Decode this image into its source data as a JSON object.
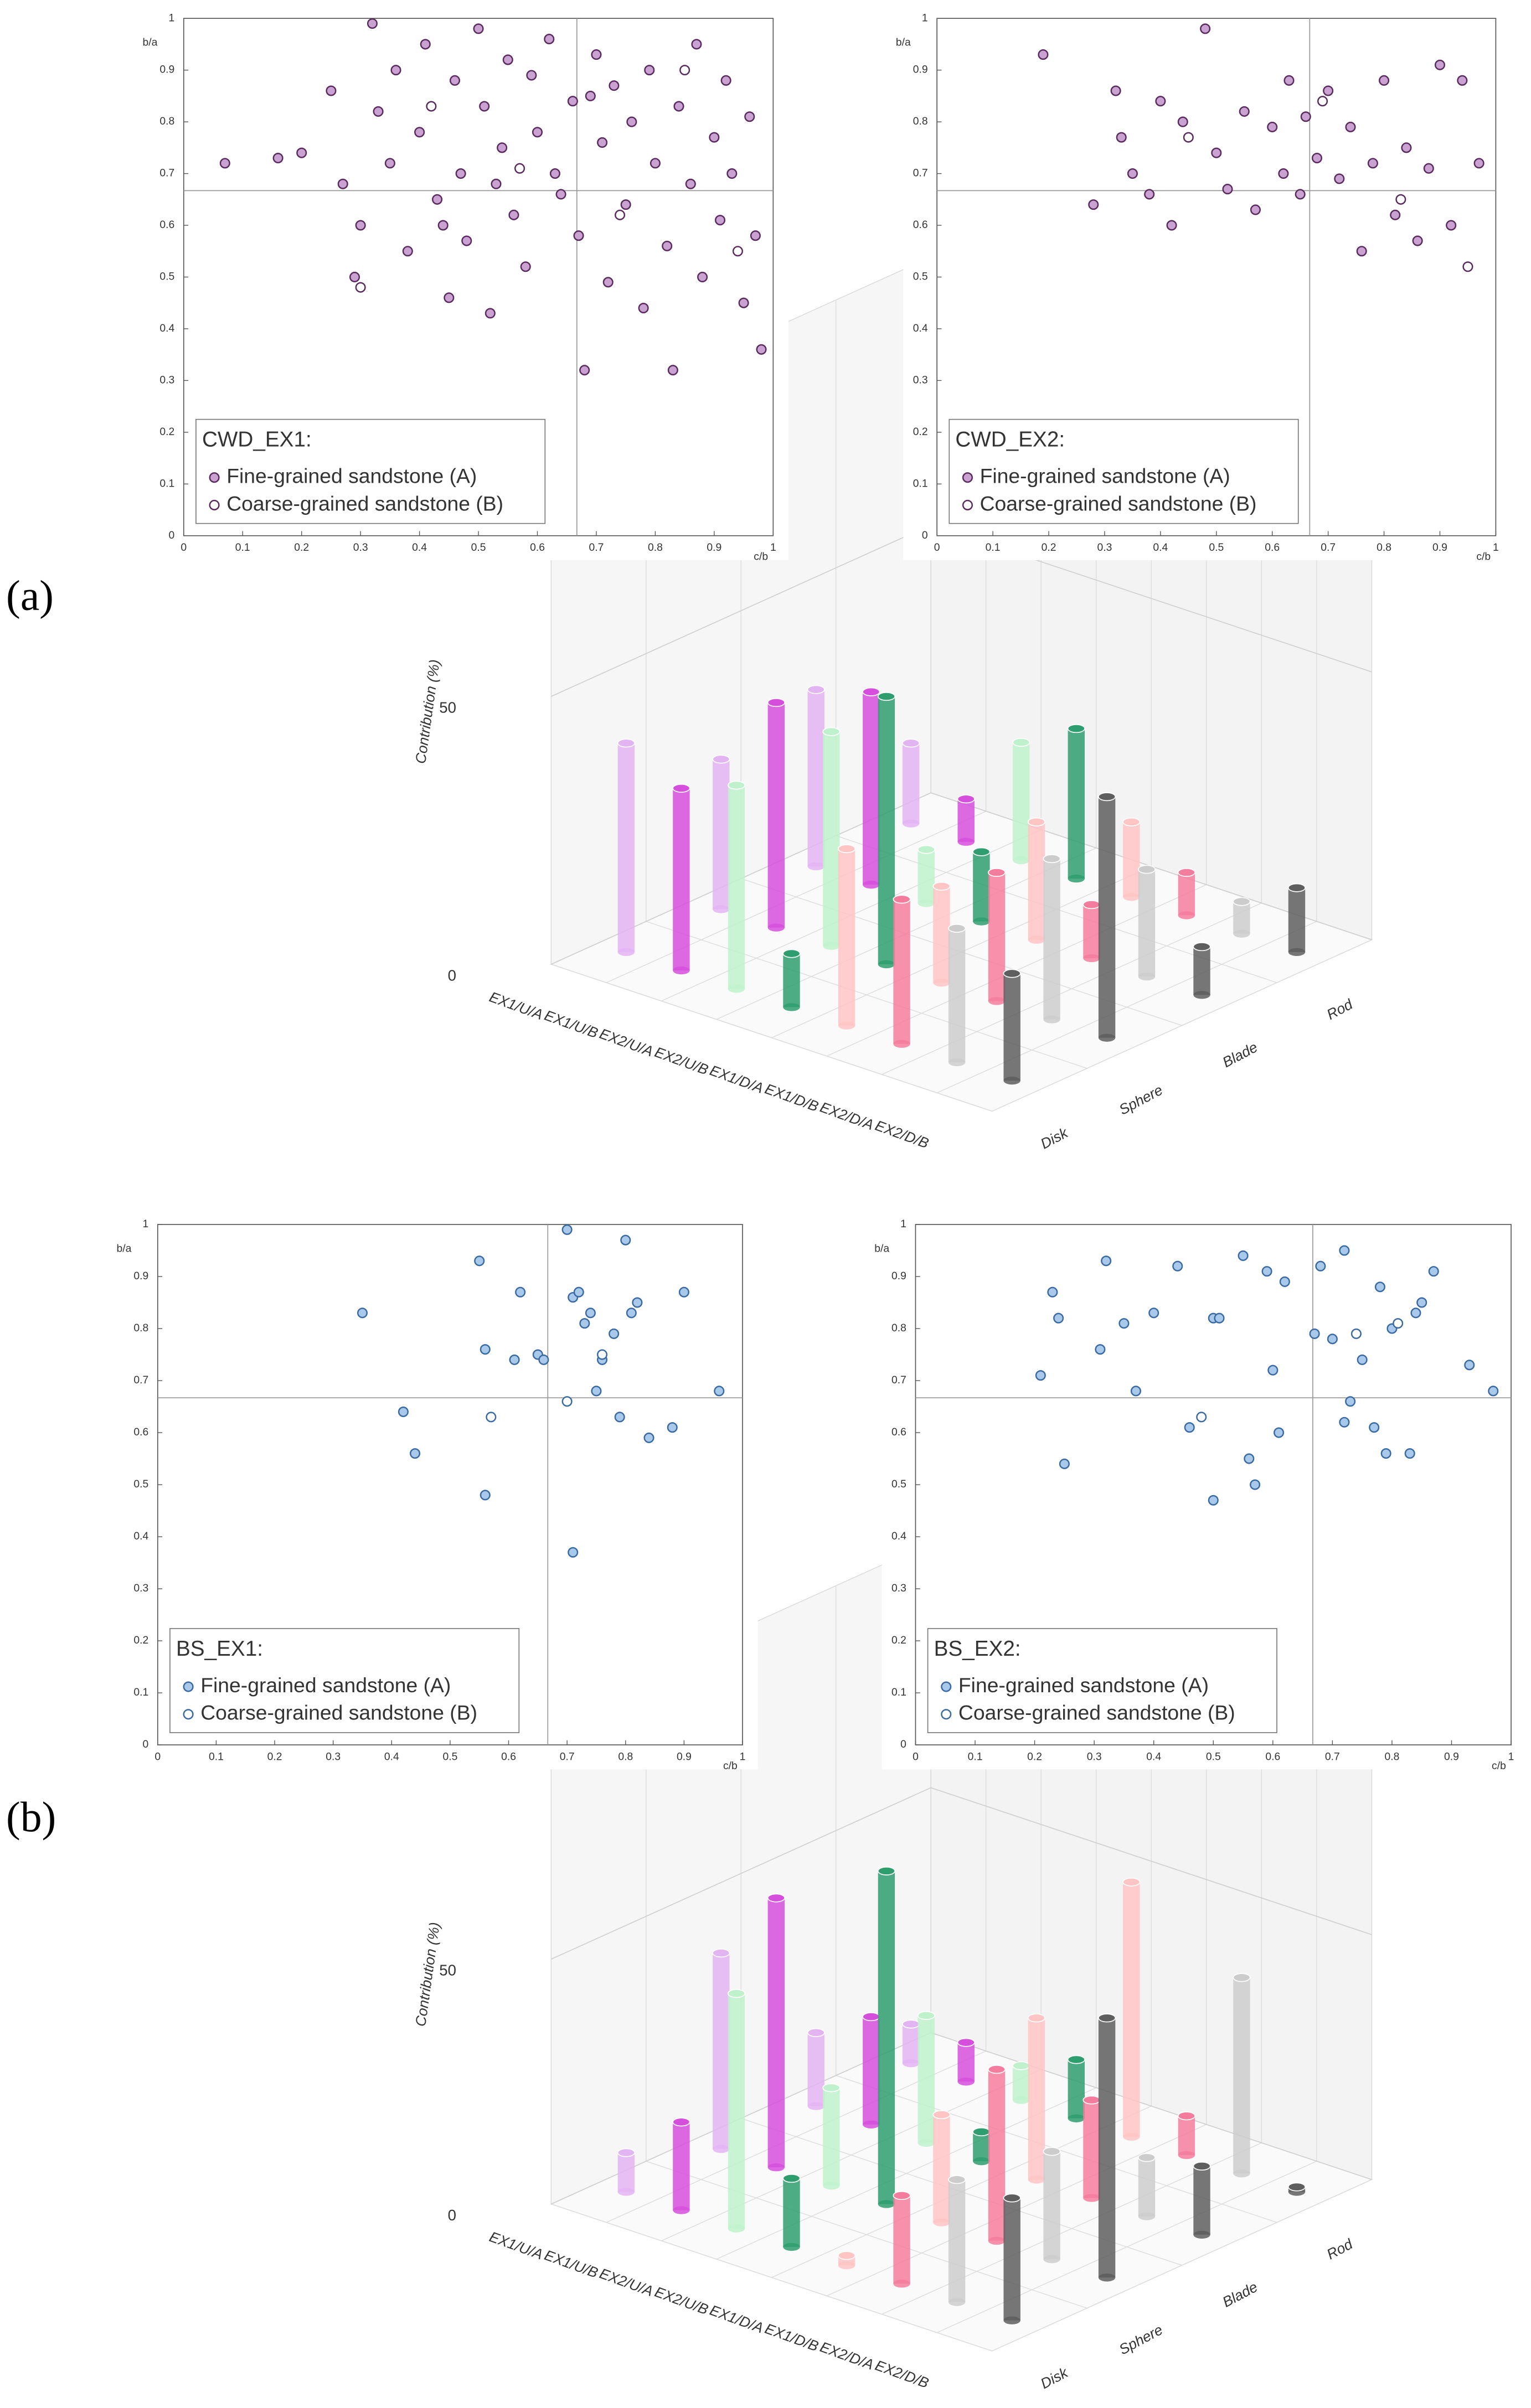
{
  "panel_labels": [
    "(a)",
    "(b)"
  ],
  "chart_data": [
    {
      "type": "scatter",
      "xlabel": "c/b",
      "ylabel": "b/a",
      "legend_title": "CWD_EX1:",
      "legend": "lower left",
      "xlim": [
        0,
        1
      ],
      "ylim": [
        0,
        1
      ],
      "xticks": [
        0,
        0.1,
        0.2,
        0.3,
        0.4,
        0.5,
        0.6,
        0.7,
        0.8,
        0.9,
        1
      ],
      "yticks": [
        0,
        0.1,
        0.2,
        0.3,
        0.4,
        0.5,
        0.6,
        0.7,
        0.8,
        0.9,
        1
      ],
      "hline": 0.667,
      "vline": 0.667,
      "series": [
        {
          "name": "Fine-grained sandstone (A)",
          "color": "#c9a2d2",
          "edge": "#5a2a5e",
          "filled": true,
          "x": [
            0.07,
            0.16,
            0.2,
            0.25,
            0.27,
            0.29,
            0.3,
            0.32,
            0.33,
            0.35,
            0.36,
            0.38,
            0.4,
            0.41,
            0.43,
            0.45,
            0.46,
            0.47,
            0.48,
            0.5,
            0.51,
            0.52,
            0.54,
            0.55,
            0.56,
            0.58,
            0.59,
            0.6,
            0.62,
            0.63,
            0.64,
            0.66,
            0.67,
            0.68,
            0.7,
            0.71,
            0.72,
            0.73,
            0.75,
            0.76,
            0.78,
            0.79,
            0.8,
            0.82,
            0.83,
            0.84,
            0.86,
            0.87,
            0.88,
            0.9,
            0.91,
            0.92,
            0.93,
            0.95,
            0.96,
            0.97,
            0.98,
            0.44,
            0.53,
            0.69
          ],
          "values": [
            0.72,
            0.73,
            0.74,
            0.86,
            0.68,
            0.5,
            0.6,
            0.99,
            0.82,
            0.72,
            0.9,
            0.55,
            0.78,
            0.95,
            0.65,
            0.46,
            0.88,
            0.7,
            0.57,
            0.98,
            0.83,
            0.43,
            0.75,
            0.92,
            0.62,
            0.52,
            0.89,
            0.78,
            0.96,
            0.7,
            0.66,
            0.84,
            0.58,
            0.32,
            0.93,
            0.76,
            0.49,
            0.87,
            0.64,
            0.8,
            0.44,
            0.9,
            0.72,
            0.56,
            0.32,
            0.83,
            0.68,
            0.95,
            0.5,
            0.77,
            0.61,
            0.88,
            0.7,
            0.45,
            0.81,
            0.58,
            0.36,
            0.6,
            0.68,
            0.85
          ]
        },
        {
          "name": "Coarse-grained sandstone (B)",
          "color": "#ffffff",
          "edge": "#5a2a5e",
          "filled": false,
          "x": [
            0.3,
            0.42,
            0.57,
            0.74,
            0.85,
            0.94
          ],
          "values": [
            0.48,
            0.83,
            0.71,
            0.62,
            0.9,
            0.55
          ]
        }
      ]
    },
    {
      "type": "scatter",
      "xlabel": "c/b",
      "ylabel": "b/a",
      "legend_title": "CWD_EX2:",
      "legend": "lower left",
      "xlim": [
        0,
        1
      ],
      "ylim": [
        0,
        1
      ],
      "xticks": [
        0,
        0.1,
        0.2,
        0.3,
        0.4,
        0.5,
        0.6,
        0.7,
        0.8,
        0.9,
        1
      ],
      "yticks": [
        0,
        0.1,
        0.2,
        0.3,
        0.4,
        0.5,
        0.6,
        0.7,
        0.8,
        0.9,
        1
      ],
      "hline": 0.667,
      "vline": 0.667,
      "series": [
        {
          "name": "Fine-grained sandstone (A)",
          "color": "#c9a2d2",
          "edge": "#5a2a5e",
          "filled": true,
          "x": [
            0.19,
            0.28,
            0.32,
            0.33,
            0.35,
            0.38,
            0.4,
            0.42,
            0.44,
            0.48,
            0.5,
            0.52,
            0.55,
            0.57,
            0.6,
            0.62,
            0.63,
            0.65,
            0.66,
            0.68,
            0.7,
            0.72,
            0.74,
            0.76,
            0.78,
            0.8,
            0.82,
            0.84,
            0.86,
            0.88,
            0.9,
            0.92,
            0.94,
            0.97
          ],
          "values": [
            0.93,
            0.64,
            0.86,
            0.77,
            0.7,
            0.66,
            0.84,
            0.6,
            0.8,
            0.98,
            0.74,
            0.67,
            0.82,
            0.63,
            0.79,
            0.7,
            0.88,
            0.66,
            0.81,
            0.73,
            0.86,
            0.69,
            0.79,
            0.55,
            0.72,
            0.88,
            0.62,
            0.75,
            0.57,
            0.71,
            0.91,
            0.6,
            0.88,
            0.72
          ]
        },
        {
          "name": "Coarse-grained sandstone (B)",
          "color": "#ffffff",
          "edge": "#5a2a5e",
          "filled": false,
          "x": [
            0.45,
            0.69,
            0.83,
            0.95
          ],
          "values": [
            0.77,
            0.84,
            0.65,
            0.52
          ]
        }
      ]
    },
    {
      "type": "bar3d",
      "ylabel": "Contribution (%)",
      "ylim": [
        0,
        100
      ],
      "yticks": [
        0,
        50
      ],
      "categories": [
        "Disk",
        "Sphere",
        "Blade",
        "Rod"
      ],
      "series": [
        {
          "name": "EX1/U/A",
          "color": "#e3b4f2",
          "values": [
            39,
            28,
            33,
            15
          ]
        },
        {
          "name": "EX1/U/B",
          "color": "#d64fdc",
          "values": [
            34,
            42,
            36,
            8
          ]
        },
        {
          "name": "EX2/U/A",
          "color": "#bff2cc",
          "values": [
            38,
            40,
            10,
            22
          ]
        },
        {
          "name": "EX2/U/B",
          "color": "#2f9e6e",
          "values": [
            10,
            50,
            13,
            28
          ]
        },
        {
          "name": "EX1/D/A",
          "color": "#ffc4c4",
          "values": [
            33,
            18,
            22,
            14
          ]
        },
        {
          "name": "EX1/D/B",
          "color": "#f47c9c",
          "values": [
            27,
            24,
            10,
            8
          ]
        },
        {
          "name": "EX2/D/A",
          "color": "#cccccc",
          "values": [
            25,
            30,
            20,
            6
          ]
        },
        {
          "name": "EX2/D/B",
          "color": "#5e5e5e",
          "values": [
            20,
            45,
            9,
            12
          ]
        }
      ]
    },
    {
      "type": "scatter",
      "xlabel": "c/b",
      "ylabel": "b/a",
      "legend_title": "BS_EX1:",
      "legend": "lower left",
      "xlim": [
        0,
        1
      ],
      "ylim": [
        0,
        1
      ],
      "xticks": [
        0,
        0.1,
        0.2,
        0.3,
        0.4,
        0.5,
        0.6,
        0.7,
        0.8,
        0.9,
        1
      ],
      "yticks": [
        0,
        0.1,
        0.2,
        0.3,
        0.4,
        0.5,
        0.6,
        0.7,
        0.8,
        0.9,
        1
      ],
      "hline": 0.667,
      "vline": 0.667,
      "series": [
        {
          "name": "Fine-grained sandstone (A)",
          "color": "#a9c9ea",
          "edge": "#3a6aa2",
          "filled": true,
          "x": [
            0.35,
            0.42,
            0.44,
            0.55,
            0.56,
            0.56,
            0.61,
            0.62,
            0.65,
            0.66,
            0.7,
            0.71,
            0.71,
            0.72,
            0.73,
            0.74,
            0.75,
            0.76,
            0.78,
            0.79,
            0.8,
            0.81,
            0.82,
            0.84,
            0.88,
            0.9,
            0.96
          ],
          "values": [
            0.83,
            0.64,
            0.56,
            0.93,
            0.76,
            0.48,
            0.74,
            0.87,
            0.75,
            0.74,
            0.99,
            0.86,
            0.37,
            0.87,
            0.81,
            0.83,
            0.68,
            0.74,
            0.79,
            0.63,
            0.97,
            0.83,
            0.85,
            0.59,
            0.61,
            0.87,
            0.68
          ]
        },
        {
          "name": "Coarse-grained sandstone (B)",
          "color": "#ffffff",
          "edge": "#3a6aa2",
          "filled": false,
          "x": [
            0.57,
            0.7,
            0.76
          ],
          "values": [
            0.63,
            0.66,
            0.75
          ]
        }
      ]
    },
    {
      "type": "scatter",
      "xlabel": "c/b",
      "ylabel": "b/a",
      "legend_title": "BS_EX2:",
      "legend": "lower left",
      "xlim": [
        0,
        1
      ],
      "ylim": [
        0,
        1
      ],
      "xticks": [
        0,
        0.1,
        0.2,
        0.3,
        0.4,
        0.5,
        0.6,
        0.7,
        0.8,
        0.9,
        1
      ],
      "yticks": [
        0,
        0.1,
        0.2,
        0.3,
        0.4,
        0.5,
        0.6,
        0.7,
        0.8,
        0.9,
        1
      ],
      "hline": 0.667,
      "vline": 0.667,
      "series": [
        {
          "name": "Fine-grained sandstone (A)",
          "color": "#a9c9ea",
          "edge": "#3a6aa2",
          "filled": true,
          "x": [
            0.21,
            0.23,
            0.24,
            0.25,
            0.31,
            0.32,
            0.35,
            0.37,
            0.4,
            0.44,
            0.46,
            0.5,
            0.5,
            0.51,
            0.55,
            0.56,
            0.57,
            0.59,
            0.6,
            0.61,
            0.62,
            0.67,
            0.68,
            0.7,
            0.72,
            0.72,
            0.73,
            0.75,
            0.77,
            0.78,
            0.79,
            0.8,
            0.83,
            0.84,
            0.85,
            0.87,
            0.93,
            0.97
          ],
          "values": [
            0.71,
            0.87,
            0.82,
            0.54,
            0.76,
            0.93,
            0.81,
            0.68,
            0.83,
            0.92,
            0.61,
            0.82,
            0.47,
            0.82,
            0.94,
            0.55,
            0.5,
            0.91,
            0.72,
            0.6,
            0.89,
            0.79,
            0.92,
            0.78,
            0.95,
            0.62,
            0.66,
            0.74,
            0.61,
            0.88,
            0.56,
            0.8,
            0.56,
            0.83,
            0.85,
            0.91,
            0.73,
            0.68
          ]
        },
        {
          "name": "Coarse-grained sandstone (B)",
          "color": "#ffffff",
          "edge": "#3a6aa2",
          "filled": false,
          "x": [
            0.48,
            0.74,
            0.81
          ],
          "values": [
            0.63,
            0.79,
            0.81
          ]
        }
      ]
    },
    {
      "type": "bar3d",
      "ylabel": "Contribution (%)",
      "ylim": [
        0,
        100
      ],
      "yticks": [
        0,
        50
      ],
      "categories": [
        "Disk",
        "Sphere",
        "Blade",
        "Rod"
      ],
      "series": [
        {
          "name": "EX1/U/A",
          "color": "#e3b4f2",
          "values": [
            8,
            40,
            15,
            8
          ]
        },
        {
          "name": "EX1/U/B",
          "color": "#d64fdc",
          "values": [
            18,
            55,
            22,
            8
          ]
        },
        {
          "name": "EX2/U/A",
          "color": "#bff2cc",
          "values": [
            48,
            20,
            26,
            7
          ]
        },
        {
          "name": "EX2/U/B",
          "color": "#2f9e6e",
          "values": [
            14,
            68,
            6,
            12
          ]
        },
        {
          "name": "EX1/D/A",
          "color": "#ffc4c4",
          "values": [
            2,
            22,
            33,
            52
          ]
        },
        {
          "name": "EX1/D/B",
          "color": "#f47c9c",
          "values": [
            18,
            35,
            20,
            8
          ]
        },
        {
          "name": "EX2/D/A",
          "color": "#cccccc",
          "values": [
            25,
            22,
            12,
            40
          ]
        },
        {
          "name": "EX2/D/B",
          "color": "#5e5e5e",
          "values": [
            25,
            53,
            14,
            1
          ]
        }
      ]
    }
  ]
}
